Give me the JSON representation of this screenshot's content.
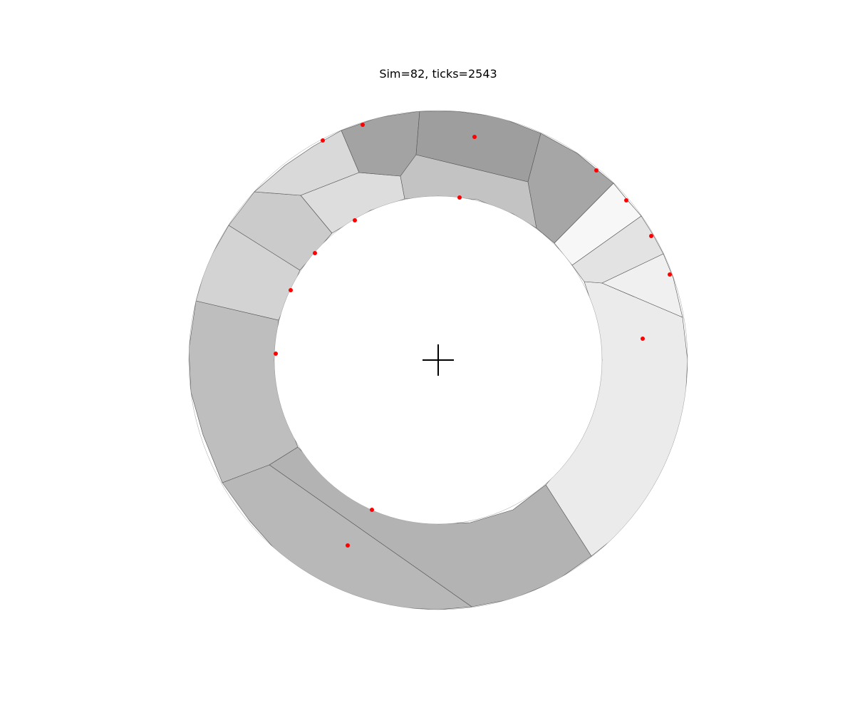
{
  "title": "Sim=82, ticks=2543",
  "colors": {
    "background": "#ffffff",
    "cell_edge": "#555555",
    "site_marker": "#ff0000",
    "center_marker": "#000000"
  }
}
